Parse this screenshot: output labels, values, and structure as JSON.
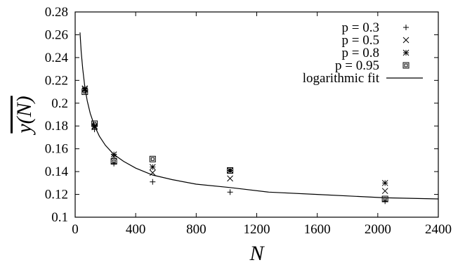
{
  "chart_data": {
    "type": "scatter",
    "xlabel": "N",
    "ylabel": "y(N)",
    "ylabel_overline": true,
    "xlim": [
      0,
      2400
    ],
    "ylim": [
      0.1,
      0.28
    ],
    "xticks": [
      "0",
      "400",
      "800",
      "1200",
      "1600",
      "2000",
      "2400"
    ],
    "yticks": [
      "0.1",
      "0.12",
      "0.14",
      "0.16",
      "0.18",
      "0.2",
      "0.22",
      "0.24",
      "0.26",
      "0.28"
    ],
    "grid": false,
    "legend_position": "top-right",
    "series": [
      {
        "name": "p = 0.3",
        "marker": "plus",
        "x": [
          64,
          128,
          256,
          512,
          1024,
          2048
        ],
        "y": [
          0.211,
          0.177,
          0.147,
          0.131,
          0.122,
          0.114
        ]
      },
      {
        "name": "p = 0.5",
        "marker": "cross",
        "x": [
          64,
          128,
          256,
          512,
          1024,
          2048
        ],
        "y": [
          0.212,
          0.179,
          0.153,
          0.139,
          0.134,
          0.123
        ]
      },
      {
        "name": "p = 0.8",
        "marker": "star",
        "x": [
          64,
          128,
          256,
          512,
          1024,
          2048
        ],
        "y": [
          0.213,
          0.18,
          0.155,
          0.144,
          0.141,
          0.13
        ]
      },
      {
        "name": "p = 0.95",
        "marker": "box",
        "x": [
          64,
          128,
          256,
          512,
          1024,
          2048
        ],
        "y": [
          0.21,
          0.182,
          0.149,
          0.151,
          0.141,
          0.116
        ]
      }
    ],
    "fit": {
      "name": "logarithmic fit",
      "x": [
        32,
        40,
        50,
        64,
        80,
        100,
        128,
        160,
        200,
        256,
        320,
        400,
        512,
        640,
        800,
        1024,
        1280,
        1600,
        2048,
        2400
      ],
      "y": [
        0.262,
        0.245,
        0.23,
        0.214,
        0.202,
        0.191,
        0.18,
        0.171,
        0.163,
        0.155,
        0.149,
        0.143,
        0.137,
        0.133,
        0.129,
        0.126,
        0.122,
        0.12,
        0.117,
        0.116
      ]
    }
  }
}
